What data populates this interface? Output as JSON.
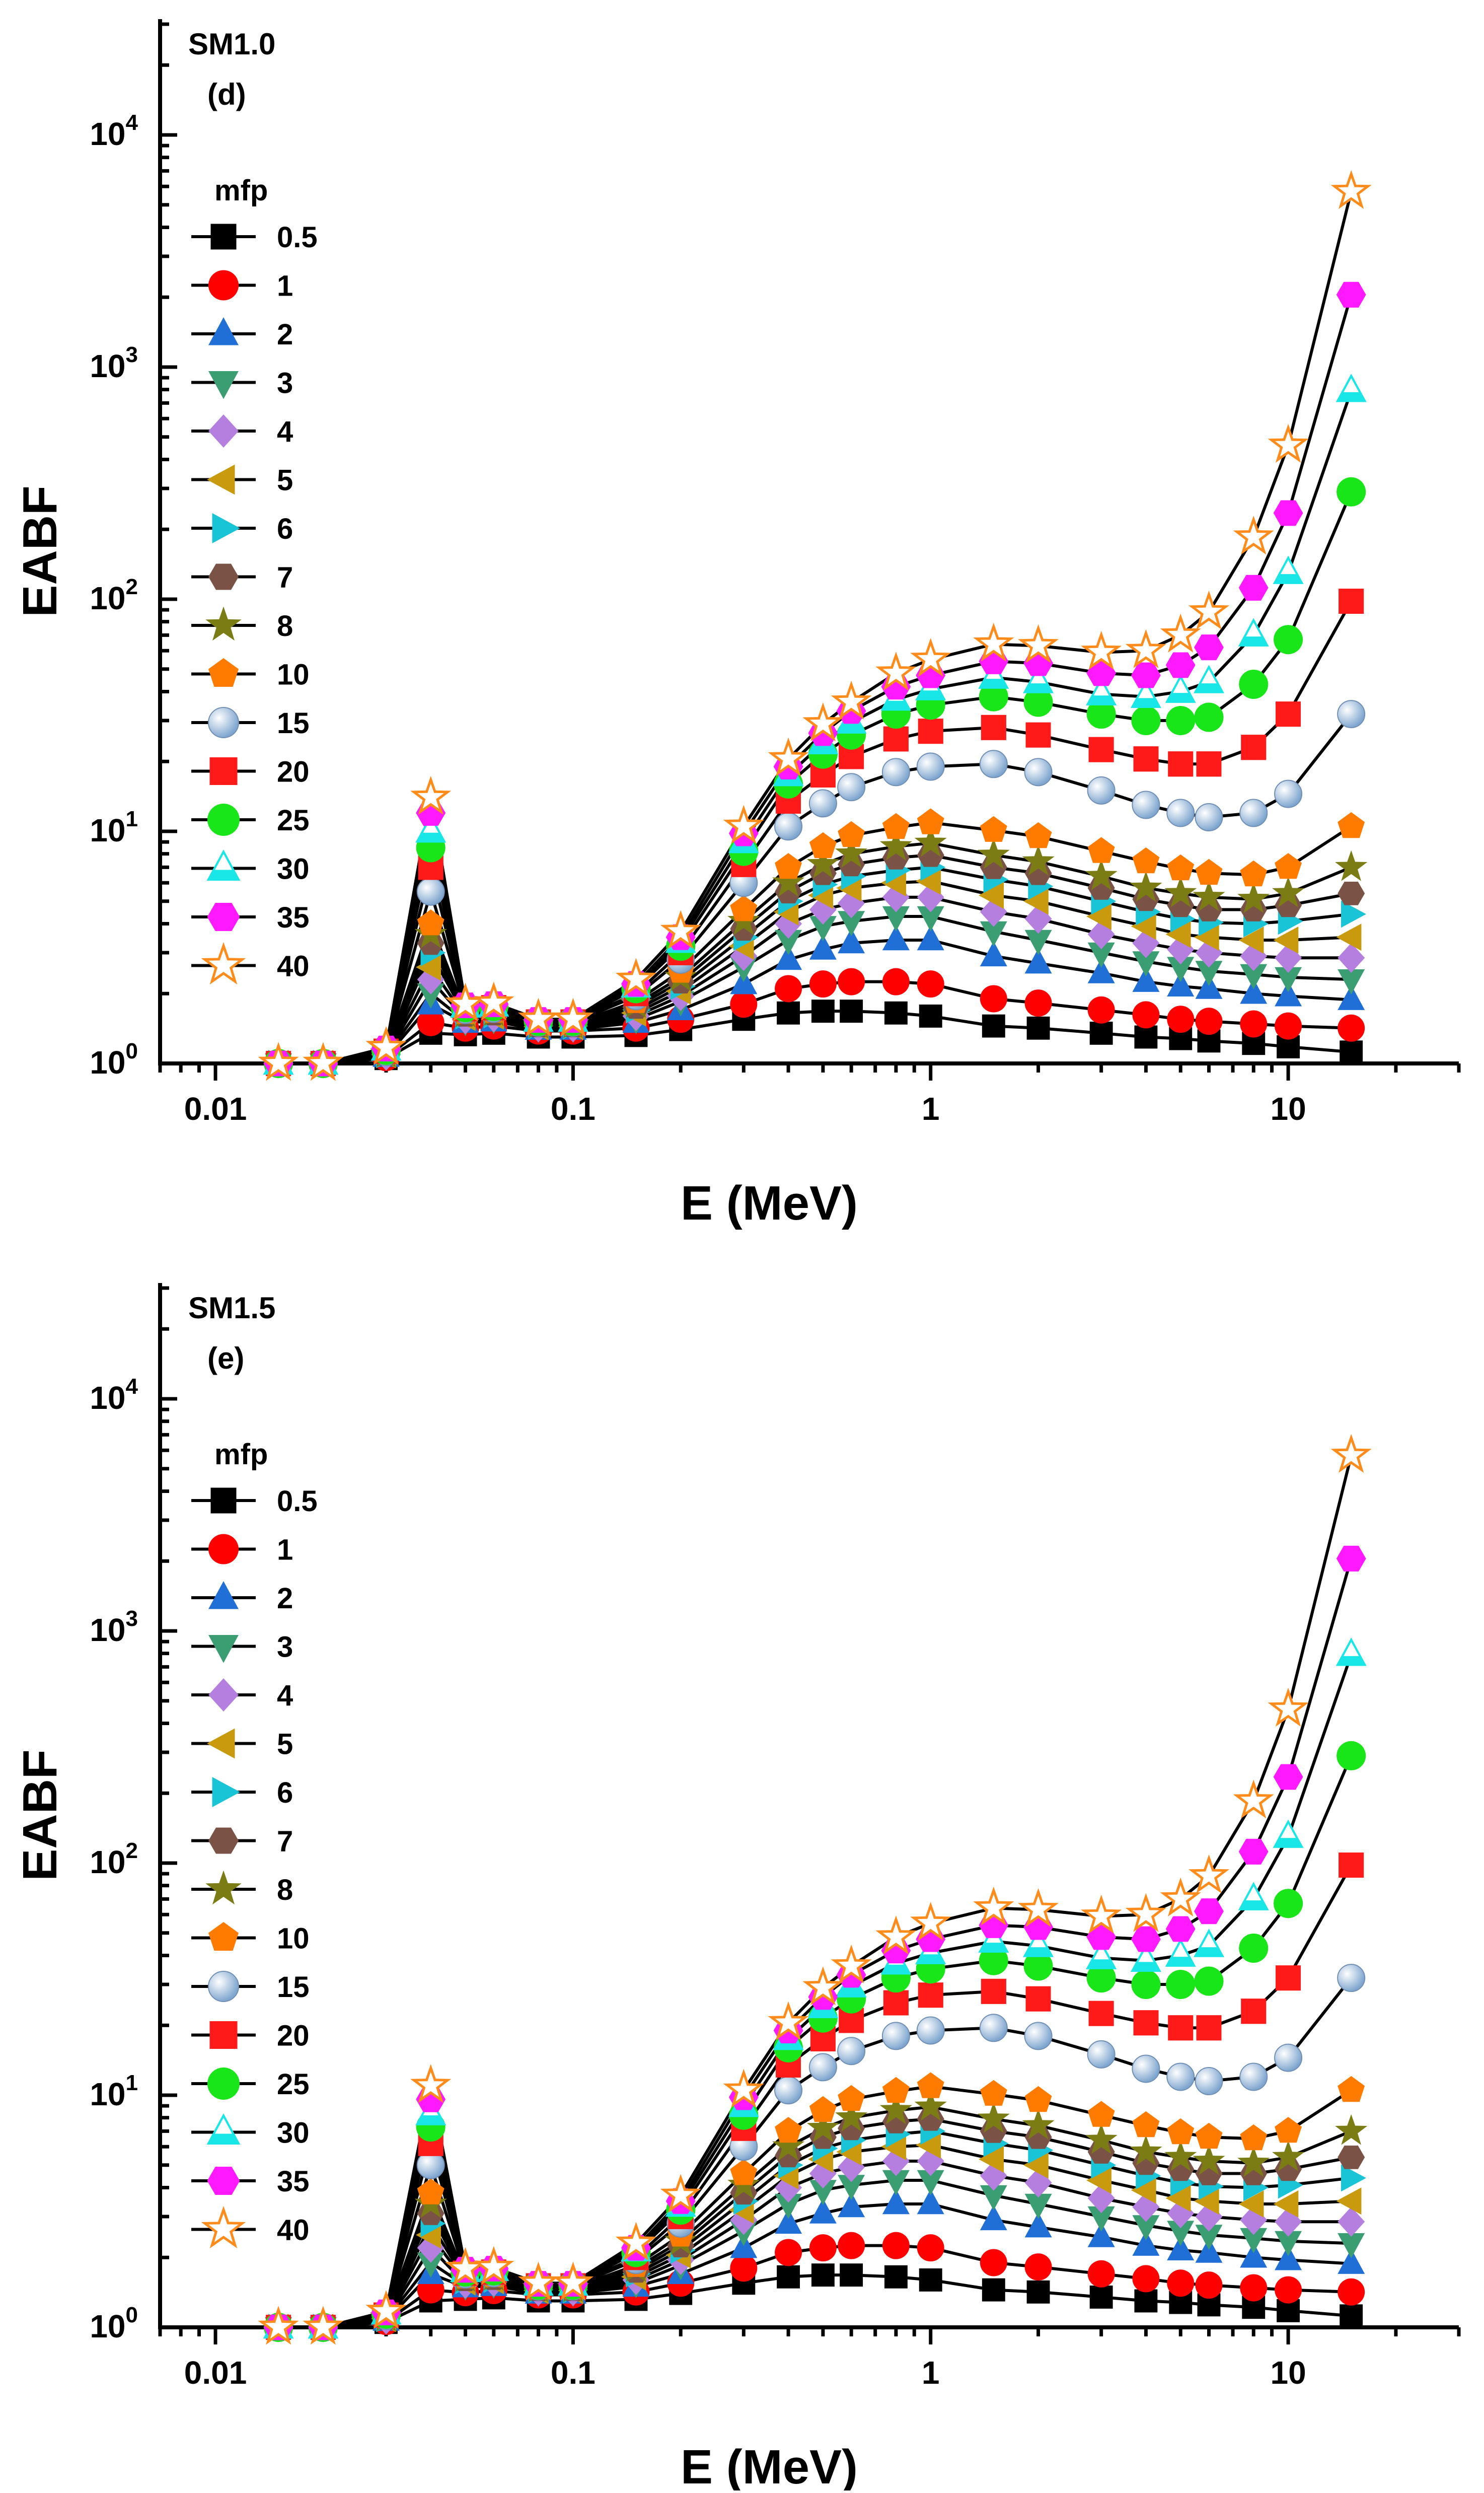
{
  "colors": {
    "0.5": "#000000",
    "1": "#ff0000",
    "2": "#1f6fd6",
    "3": "#3a9e72",
    "4": "#b57fe0",
    "5": "#c99a0e",
    "6": "#19c4d6",
    "7": "#7b5346",
    "8": "#7c7c14",
    "10": "#ff7b00",
    "15": "#7fa6cf",
    "20": "#ff1a1a",
    "25": "#19e619",
    "30": "#19e6e6",
    "35": "#ff19ff",
    "40": "#ff8c1a"
  },
  "shared": {
    "x_values": [
      0.015,
      0.02,
      0.03,
      0.04,
      0.05,
      0.06,
      0.08,
      0.1,
      0.15,
      0.2,
      0.3,
      0.4,
      0.5,
      0.6,
      0.8,
      1,
      1.5,
      2,
      3,
      4,
      5,
      6,
      8,
      10,
      15
    ],
    "legend_title": "mfp",
    "series_names": [
      "0.5",
      "1",
      "2",
      "3",
      "4",
      "5",
      "6",
      "7",
      "8",
      "10",
      "15",
      "20",
      "25",
      "30",
      "35",
      "40"
    ],
    "markers": [
      "square",
      "circle",
      "triangle-up",
      "triangle-down",
      "diamond",
      "triangle-left",
      "triangle-right",
      "hexagon",
      "star",
      "pentagon",
      "sphere",
      "square-half",
      "circle-half",
      "triangle-half",
      "hexagon-half",
      "star-open"
    ]
  },
  "chart_data": [
    {
      "type": "line",
      "title": "SM1.0",
      "panel_label": "(d)",
      "xlabel": "E (MeV)",
      "ylabel": "EABF",
      "xscale": "log",
      "yscale": "log",
      "xlim": [
        0.007,
        30
      ],
      "ylim": [
        1,
        30000
      ],
      "x_ticks": [
        "0.01",
        "0.1",
        "1",
        "10"
      ],
      "y_ticks": [
        {
          "base": "10",
          "exp": "0"
        },
        {
          "base": "10",
          "exp": "1"
        },
        {
          "base": "10",
          "exp": "2"
        },
        {
          "base": "10",
          "exp": "3"
        },
        {
          "base": "10",
          "exp": "4"
        }
      ],
      "legend_position": "top-left",
      "series": [
        {
          "name": "0.5",
          "values": [
            1.0,
            1.0,
            1.05,
            1.35,
            1.33,
            1.35,
            1.3,
            1.3,
            1.32,
            1.4,
            1.55,
            1.65,
            1.68,
            1.68,
            1.65,
            1.6,
            1.45,
            1.42,
            1.35,
            1.3,
            1.28,
            1.25,
            1.22,
            1.18,
            1.12
          ]
        },
        {
          "name": "1",
          "values": [
            1.0,
            1.0,
            1.06,
            1.5,
            1.42,
            1.45,
            1.38,
            1.38,
            1.42,
            1.55,
            1.8,
            2.1,
            2.2,
            2.25,
            2.25,
            2.2,
            1.9,
            1.82,
            1.7,
            1.62,
            1.55,
            1.52,
            1.48,
            1.45,
            1.42
          ]
        },
        {
          "name": "2",
          "values": [
            1.0,
            1.0,
            1.07,
            1.8,
            1.5,
            1.52,
            1.4,
            1.4,
            1.5,
            1.7,
            2.2,
            2.8,
            3.1,
            3.3,
            3.4,
            3.4,
            2.9,
            2.7,
            2.45,
            2.25,
            2.15,
            2.1,
            2.0,
            1.95,
            1.88
          ]
        },
        {
          "name": "3",
          "values": [
            1.0,
            1.0,
            1.08,
            2.0,
            1.52,
            1.55,
            1.42,
            1.42,
            1.55,
            1.85,
            2.6,
            3.4,
            3.9,
            4.1,
            4.3,
            4.3,
            3.7,
            3.4,
            3.0,
            2.75,
            2.6,
            2.5,
            2.42,
            2.35,
            2.3
          ]
        },
        {
          "name": "4",
          "values": [
            1.0,
            1.0,
            1.08,
            2.3,
            1.55,
            1.58,
            1.43,
            1.43,
            1.6,
            1.95,
            2.9,
            4.0,
            4.6,
            4.9,
            5.2,
            5.2,
            4.5,
            4.2,
            3.6,
            3.3,
            3.1,
            3.0,
            2.9,
            2.85,
            2.85
          ]
        },
        {
          "name": "5",
          "values": [
            1.0,
            1.0,
            1.09,
            2.6,
            1.58,
            1.6,
            1.44,
            1.44,
            1.65,
            2.05,
            3.2,
            4.5,
            5.3,
            5.7,
            6.0,
            6.1,
            5.3,
            5.0,
            4.3,
            3.9,
            3.6,
            3.5,
            3.4,
            3.4,
            3.5
          ]
        },
        {
          "name": "6",
          "values": [
            1.0,
            1.0,
            1.09,
            3.0,
            1.6,
            1.62,
            1.45,
            1.45,
            1.7,
            2.15,
            3.5,
            5.0,
            5.9,
            6.4,
            6.8,
            7.0,
            6.2,
            5.8,
            5.0,
            4.5,
            4.2,
            4.05,
            4.0,
            4.1,
            4.4
          ]
        },
        {
          "name": "7",
          "values": [
            1.0,
            1.0,
            1.1,
            3.3,
            1.62,
            1.64,
            1.46,
            1.46,
            1.75,
            2.25,
            3.8,
            5.5,
            6.6,
            7.2,
            7.7,
            7.9,
            7.0,
            6.6,
            5.7,
            5.1,
            4.8,
            4.6,
            4.6,
            4.8,
            5.4
          ]
        },
        {
          "name": "8",
          "values": [
            1.0,
            1.0,
            1.1,
            3.6,
            1.64,
            1.66,
            1.47,
            1.47,
            1.8,
            2.35,
            4.1,
            6.0,
            7.2,
            8.0,
            8.6,
            8.9,
            7.9,
            7.4,
            6.4,
            5.7,
            5.4,
            5.2,
            5.1,
            5.4,
            7.0
          ]
        },
        {
          "name": "10",
          "values": [
            1.0,
            1.0,
            1.11,
            4.0,
            1.66,
            1.68,
            1.48,
            1.48,
            1.85,
            2.5,
            4.6,
            7.0,
            8.6,
            9.6,
            10.4,
            10.9,
            10.1,
            9.5,
            8.2,
            7.4,
            6.9,
            6.6,
            6.5,
            7.0,
            10.5
          ]
        },
        {
          "name": "15",
          "values": [
            1.0,
            1.0,
            1.12,
            5.5,
            1.7,
            1.72,
            1.5,
            1.5,
            1.95,
            2.8,
            6.0,
            10.5,
            13.2,
            15.5,
            18.0,
            19.0,
            19.5,
            18.0,
            15.0,
            13.0,
            12.0,
            11.5,
            12.0,
            14.5,
            32.0
          ]
        },
        {
          "name": "20",
          "values": [
            1.0,
            1.0,
            1.13,
            7.0,
            1.72,
            1.74,
            1.51,
            1.51,
            2.0,
            3.0,
            7.2,
            13.5,
            17.5,
            21.0,
            25.0,
            27.0,
            28.0,
            26.0,
            22.5,
            20.5,
            19.5,
            19.5,
            23.0,
            32.0,
            98.0
          ]
        },
        {
          "name": "25",
          "values": [
            1.0,
            1.0,
            1.14,
            8.5,
            1.74,
            1.76,
            1.52,
            1.52,
            2.1,
            3.2,
            8.2,
            16.0,
            21.5,
            26.0,
            32.0,
            35.0,
            38.0,
            36.0,
            32.0,
            30.0,
            30.0,
            31.0,
            43.0,
            67.0,
            290.0
          ]
        },
        {
          "name": "30",
          "values": [
            1.0,
            1.0,
            1.15,
            10.0,
            1.76,
            1.78,
            1.53,
            1.53,
            2.15,
            3.35,
            9.0,
            17.5,
            24.0,
            29.5,
            37.0,
            41.0,
            46.0,
            44.0,
            39.0,
            38.0,
            40.0,
            44.0,
            70.0,
            130.0,
            790.0
          ]
        },
        {
          "name": "35",
          "values": [
            1.0,
            1.0,
            1.16,
            12.0,
            1.78,
            1.8,
            1.54,
            1.54,
            2.2,
            3.5,
            9.8,
            19.0,
            26.5,
            33.0,
            42.0,
            47.0,
            54.0,
            53.0,
            48.0,
            47.0,
            52.0,
            62.0,
            112.0,
            235.0,
            2050.0
          ]
        },
        {
          "name": "40",
          "values": [
            1.0,
            1.0,
            1.17,
            14.0,
            1.8,
            1.82,
            1.55,
            1.55,
            2.3,
            3.7,
            10.5,
            20.5,
            29.0,
            36.0,
            48.0,
            55.0,
            64.0,
            63.0,
            59.0,
            60.0,
            70.0,
            88.0,
            185.0,
            460.0,
            5700.0
          ]
        }
      ]
    },
    {
      "type": "line",
      "title": "SM1.5",
      "panel_label": "(e)",
      "xlabel": "E (MeV)",
      "ylabel": "EABF",
      "xscale": "log",
      "yscale": "log",
      "xlim": [
        0.007,
        30
      ],
      "ylim": [
        1,
        30000
      ],
      "x_ticks": [
        "0.01",
        "0.1",
        "1",
        "10"
      ],
      "y_ticks": [
        {
          "base": "10",
          "exp": "0"
        },
        {
          "base": "10",
          "exp": "1"
        },
        {
          "base": "10",
          "exp": "2"
        },
        {
          "base": "10",
          "exp": "3"
        },
        {
          "base": "10",
          "exp": "4"
        }
      ],
      "legend_position": "top-left",
      "series": [
        {
          "name": "0.5",
          "values": [
            1.0,
            1.0,
            1.05,
            1.3,
            1.32,
            1.34,
            1.3,
            1.3,
            1.32,
            1.4,
            1.55,
            1.65,
            1.68,
            1.68,
            1.65,
            1.6,
            1.45,
            1.42,
            1.35,
            1.3,
            1.28,
            1.25,
            1.22,
            1.18,
            1.12
          ]
        },
        {
          "name": "1",
          "values": [
            1.0,
            1.0,
            1.06,
            1.45,
            1.41,
            1.44,
            1.38,
            1.38,
            1.42,
            1.55,
            1.8,
            2.1,
            2.2,
            2.25,
            2.25,
            2.2,
            1.9,
            1.82,
            1.7,
            1.62,
            1.55,
            1.52,
            1.48,
            1.45,
            1.42
          ]
        },
        {
          "name": "2",
          "values": [
            1.0,
            1.0,
            1.07,
            1.7,
            1.49,
            1.51,
            1.4,
            1.4,
            1.5,
            1.7,
            2.2,
            2.8,
            3.1,
            3.3,
            3.4,
            3.4,
            2.9,
            2.7,
            2.45,
            2.25,
            2.15,
            2.1,
            2.0,
            1.95,
            1.88
          ]
        },
        {
          "name": "3",
          "values": [
            1.0,
            1.0,
            1.08,
            1.9,
            1.51,
            1.54,
            1.42,
            1.42,
            1.55,
            1.85,
            2.6,
            3.4,
            3.9,
            4.1,
            4.3,
            4.3,
            3.7,
            3.4,
            3.0,
            2.75,
            2.6,
            2.5,
            2.42,
            2.35,
            2.3
          ]
        },
        {
          "name": "4",
          "values": [
            1.0,
            1.0,
            1.08,
            2.2,
            1.54,
            1.57,
            1.43,
            1.43,
            1.6,
            1.95,
            2.9,
            4.0,
            4.6,
            4.9,
            5.2,
            5.2,
            4.5,
            4.2,
            3.6,
            3.3,
            3.1,
            3.0,
            2.9,
            2.85,
            2.85
          ]
        },
        {
          "name": "5",
          "values": [
            1.0,
            1.0,
            1.09,
            2.5,
            1.57,
            1.59,
            1.44,
            1.44,
            1.65,
            2.05,
            3.2,
            4.5,
            5.3,
            5.7,
            6.0,
            6.1,
            5.3,
            5.0,
            4.3,
            3.9,
            3.6,
            3.5,
            3.4,
            3.4,
            3.5
          ]
        },
        {
          "name": "6",
          "values": [
            1.0,
            1.0,
            1.09,
            2.8,
            1.59,
            1.61,
            1.45,
            1.45,
            1.7,
            2.15,
            3.5,
            5.0,
            5.9,
            6.4,
            6.8,
            7.0,
            6.2,
            5.8,
            5.0,
            4.5,
            4.2,
            4.05,
            4.0,
            4.1,
            4.4
          ]
        },
        {
          "name": "7",
          "values": [
            1.0,
            1.0,
            1.1,
            3.1,
            1.61,
            1.63,
            1.46,
            1.46,
            1.75,
            2.25,
            3.8,
            5.5,
            6.6,
            7.2,
            7.7,
            7.9,
            7.0,
            6.6,
            5.7,
            5.1,
            4.8,
            4.6,
            4.6,
            4.8,
            5.4
          ]
        },
        {
          "name": "8",
          "values": [
            1.0,
            1.0,
            1.1,
            3.4,
            1.63,
            1.65,
            1.47,
            1.47,
            1.8,
            2.35,
            4.1,
            6.0,
            7.2,
            8.0,
            8.6,
            8.9,
            7.9,
            7.4,
            6.4,
            5.7,
            5.4,
            5.2,
            5.1,
            5.4,
            7.0
          ]
        },
        {
          "name": "10",
          "values": [
            1.0,
            1.0,
            1.11,
            3.8,
            1.65,
            1.67,
            1.48,
            1.48,
            1.85,
            2.5,
            4.6,
            7.0,
            8.6,
            9.6,
            10.4,
            10.9,
            10.1,
            9.5,
            8.2,
            7.4,
            6.9,
            6.6,
            6.5,
            7.0,
            10.5
          ]
        },
        {
          "name": "15",
          "values": [
            1.0,
            1.0,
            1.12,
            5.0,
            1.69,
            1.71,
            1.5,
            1.5,
            1.95,
            2.8,
            6.0,
            10.5,
            13.2,
            15.5,
            18.0,
            19.0,
            19.5,
            18.0,
            15.0,
            13.0,
            12.0,
            11.5,
            12.0,
            14.5,
            32.0
          ]
        },
        {
          "name": "20",
          "values": [
            1.0,
            1.0,
            1.13,
            6.2,
            1.71,
            1.73,
            1.51,
            1.51,
            2.0,
            3.0,
            7.2,
            13.5,
            17.5,
            21.0,
            25.0,
            27.0,
            28.0,
            26.0,
            22.5,
            20.5,
            19.5,
            19.5,
            23.0,
            32.0,
            98.0
          ]
        },
        {
          "name": "25",
          "values": [
            1.0,
            1.0,
            1.14,
            7.3,
            1.73,
            1.75,
            1.52,
            1.52,
            2.1,
            3.2,
            8.2,
            16.0,
            21.5,
            26.0,
            32.0,
            35.0,
            38.0,
            36.0,
            32.0,
            30.0,
            30.0,
            31.0,
            43.0,
            67.0,
            290.0
          ]
        },
        {
          "name": "30",
          "values": [
            1.0,
            1.0,
            1.15,
            8.3,
            1.75,
            1.77,
            1.53,
            1.53,
            2.15,
            3.35,
            9.0,
            17.5,
            24.0,
            29.5,
            37.0,
            41.0,
            46.0,
            44.0,
            39.0,
            38.0,
            40.0,
            44.0,
            70.0,
            130.0,
            790.0
          ]
        },
        {
          "name": "35",
          "values": [
            1.0,
            1.0,
            1.16,
            9.6,
            1.77,
            1.79,
            1.54,
            1.54,
            2.2,
            3.5,
            9.8,
            19.0,
            26.5,
            33.0,
            42.0,
            47.0,
            54.0,
            53.0,
            48.0,
            47.0,
            52.0,
            62.0,
            112.0,
            235.0,
            2050.0
          ]
        },
        {
          "name": "40",
          "values": [
            1.0,
            1.0,
            1.17,
            11.0,
            1.79,
            1.81,
            1.55,
            1.55,
            2.3,
            3.7,
            10.5,
            20.5,
            29.0,
            36.0,
            48.0,
            55.0,
            64.0,
            63.0,
            59.0,
            60.0,
            70.0,
            88.0,
            185.0,
            460.0,
            5700.0
          ]
        }
      ]
    }
  ]
}
